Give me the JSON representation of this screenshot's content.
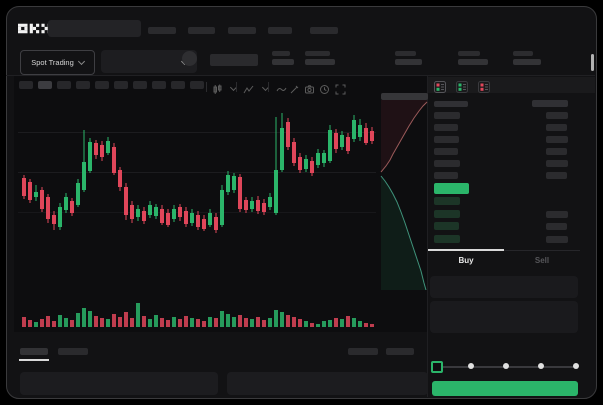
{
  "brand": {
    "name": "OKX"
  },
  "colors": {
    "green": "#2bb56a",
    "red": "#e0465a",
    "bid_row_tint": "#1c3527",
    "depth_ask_fill": "rgba(224,70,90,0.09)",
    "depth_bid_fill": "rgba(43,181,106,0.10)",
    "depth_ask_line": "#9b5a5a",
    "depth_bid_line": "#3f937b",
    "accent_button": "#2bb56a"
  },
  "subheader": {
    "market_selector": "Spot Trading"
  },
  "trade_panel": {
    "buy_tab": "Buy",
    "sell_tab": "Sell"
  },
  "skeleton": {
    "nav_items": [
      [
        148,
        28
      ],
      [
        188,
        27
      ],
      [
        228,
        28
      ],
      [
        268,
        24
      ],
      [
        310,
        28
      ]
    ],
    "ticker_stats": [
      [
        272,
        18,
        22
      ],
      [
        305,
        25,
        30
      ],
      [
        395,
        21,
        27
      ],
      [
        458,
        22,
        30
      ],
      [
        513,
        20,
        28
      ]
    ],
    "timeframes": {
      "count": 10,
      "active_index": 1
    },
    "orderbook": {
      "asks": [
        [
          26,
          22
        ],
        [
          24,
          21
        ],
        [
          25,
          22
        ],
        [
          24,
          21
        ],
        [
          26,
          22
        ],
        [
          24,
          21
        ]
      ],
      "bids": [
        [
          26,
          0
        ],
        [
          26,
          22
        ],
        [
          25,
          21
        ],
        [
          26,
          22
        ]
      ]
    },
    "slider_dots": [
      468,
      503,
      538,
      573
    ]
  },
  "chart_data": {
    "type": "candlestick",
    "unit": "pixels-from-chart-top",
    "candles": [
      [
        78,
        81,
        99,
        102,
        "r"
      ],
      [
        82,
        85,
        103,
        106,
        "r"
      ],
      [
        88,
        95,
        100,
        104,
        "g"
      ],
      [
        90,
        93,
        112,
        115,
        "r"
      ],
      [
        97,
        100,
        122,
        126,
        "r"
      ],
      [
        114,
        118,
        127,
        133,
        "r"
      ],
      [
        106,
        110,
        130,
        133,
        "g"
      ],
      [
        96,
        100,
        113,
        116,
        "g"
      ],
      [
        101,
        104,
        116,
        119,
        "r"
      ],
      [
        82,
        86,
        108,
        110,
        "g"
      ],
      [
        33,
        65,
        93,
        95,
        "g"
      ],
      [
        41,
        45,
        74,
        76,
        "g"
      ],
      [
        43,
        46,
        58,
        62,
        "r"
      ],
      [
        44,
        48,
        60,
        64,
        "r"
      ],
      [
        40,
        44,
        56,
        58,
        "g"
      ],
      [
        46,
        50,
        76,
        78,
        "r"
      ],
      [
        70,
        73,
        90,
        94,
        "r"
      ],
      [
        86,
        90,
        118,
        123,
        "r"
      ],
      [
        104,
        108,
        122,
        126,
        "r"
      ],
      [
        108,
        112,
        120,
        124,
        "g"
      ],
      [
        110,
        114,
        124,
        127,
        "r"
      ],
      [
        104,
        108,
        118,
        121,
        "g"
      ],
      [
        107,
        110,
        119,
        122,
        "g"
      ],
      [
        108,
        112,
        126,
        128,
        "r"
      ],
      [
        112,
        116,
        128,
        130,
        "r"
      ],
      [
        108,
        112,
        122,
        125,
        "g"
      ],
      [
        107,
        110,
        120,
        124,
        "r"
      ],
      [
        110,
        114,
        127,
        130,
        "r"
      ],
      [
        112,
        116,
        126,
        129,
        "g"
      ],
      [
        114,
        118,
        130,
        133,
        "r"
      ],
      [
        118,
        122,
        132,
        134,
        "r"
      ],
      [
        112,
        116,
        128,
        130,
        "g"
      ],
      [
        116,
        120,
        133,
        136,
        "r"
      ],
      [
        88,
        93,
        128,
        130,
        "g"
      ],
      [
        74,
        78,
        95,
        98,
        "g"
      ],
      [
        76,
        79,
        93,
        96,
        "g"
      ],
      [
        77,
        80,
        112,
        115,
        "r"
      ],
      [
        100,
        103,
        113,
        116,
        "r"
      ],
      [
        100,
        104,
        112,
        115,
        "g"
      ],
      [
        99,
        103,
        114,
        117,
        "r"
      ],
      [
        102,
        106,
        115,
        118,
        "r"
      ],
      [
        96,
        100,
        110,
        113,
        "g"
      ],
      [
        20,
        73,
        116,
        118,
        "g"
      ],
      [
        16,
        31,
        73,
        75,
        "g"
      ],
      [
        21,
        25,
        50,
        53,
        "r"
      ],
      [
        41,
        45,
        66,
        69,
        "r"
      ],
      [
        56,
        60,
        73,
        76,
        "r"
      ],
      [
        58,
        62,
        72,
        75,
        "g"
      ],
      [
        60,
        64,
        76,
        79,
        "r"
      ],
      [
        52,
        56,
        68,
        71,
        "g"
      ],
      [
        53,
        56,
        66,
        70,
        "g"
      ],
      [
        28,
        33,
        64,
        66,
        "g"
      ],
      [
        32,
        36,
        52,
        56,
        "r"
      ],
      [
        34,
        38,
        50,
        53,
        "g"
      ],
      [
        36,
        40,
        54,
        57,
        "r"
      ],
      [
        18,
        23,
        42,
        45,
        "g"
      ],
      [
        22,
        28,
        40,
        44,
        "g"
      ],
      [
        26,
        31,
        46,
        48,
        "r"
      ],
      [
        30,
        34,
        44,
        47,
        "r"
      ]
    ],
    "volume": [
      10,
      7,
      5,
      8,
      11,
      6,
      12,
      9,
      7,
      14,
      19,
      16,
      11,
      9,
      8,
      13,
      10,
      15,
      9,
      24,
      11,
      8,
      12,
      9,
      7,
      10,
      8,
      11,
      9,
      8,
      6,
      10,
      9,
      16,
      13,
      10,
      12,
      9,
      8,
      10,
      7,
      9,
      17,
      15,
      12,
      10,
      8,
      6,
      4,
      3,
      6,
      7,
      9,
      8,
      11,
      9,
      6,
      4,
      3
    ],
    "depth": {
      "asks": [
        [
          3,
          72
        ],
        [
          8,
          66
        ],
        [
          12,
          60
        ],
        [
          15,
          54
        ],
        [
          19,
          47
        ],
        [
          23,
          40
        ],
        [
          27,
          33
        ],
        [
          31,
          26
        ],
        [
          36,
          18
        ],
        [
          41,
          11
        ],
        [
          45,
          6
        ],
        [
          49,
          2
        ]
      ],
      "bids": [
        [
          3,
          76
        ],
        [
          7,
          81
        ],
        [
          11,
          87
        ],
        [
          15,
          94
        ],
        [
          19,
          102
        ],
        [
          23,
          112
        ],
        [
          27,
          123
        ],
        [
          31,
          135
        ],
        [
          35,
          147
        ],
        [
          39,
          159
        ],
        [
          43,
          171
        ],
        [
          46,
          183
        ],
        [
          48,
          190
        ]
      ]
    }
  }
}
